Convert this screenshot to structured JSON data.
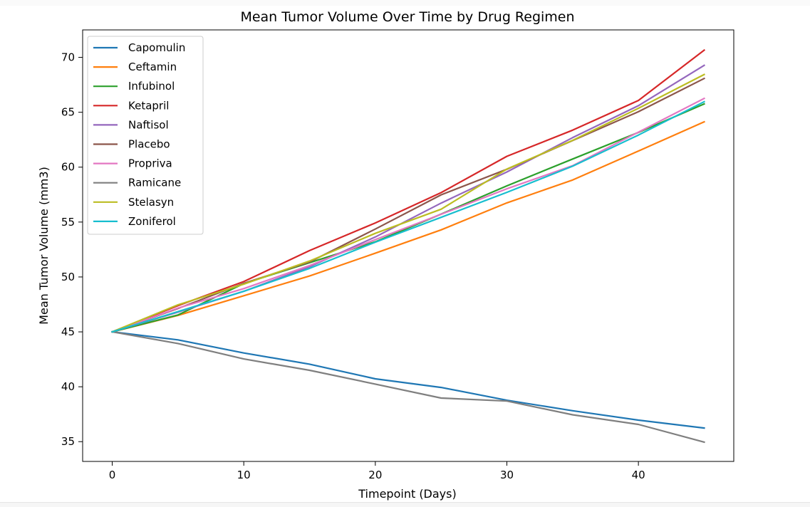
{
  "chart_data": {
    "type": "line",
    "title": "Mean Tumor Volume Over Time by Drug Regimen",
    "xlabel": "Timepoint (Days)",
    "ylabel": "Mean Tumor Volume (mm3)",
    "xlim": [
      -2.25,
      47.25
    ],
    "ylim": [
      33.2,
      72.5
    ],
    "xticks": [
      0,
      10,
      20,
      30,
      40
    ],
    "yticks": [
      35,
      40,
      45,
      50,
      55,
      60,
      65,
      70
    ],
    "grid": false,
    "legend_position": "upper-left",
    "x": [
      0,
      5,
      10,
      15,
      20,
      25,
      30,
      35,
      40,
      45
    ],
    "series": [
      {
        "name": "Capomulin",
        "color": "#1f77b4",
        "values": [
          45.0,
          44.27,
          43.08,
          42.06,
          40.72,
          39.94,
          38.77,
          37.82,
          36.96,
          36.24
        ]
      },
      {
        "name": "Ceftamin",
        "color": "#ff7f0e",
        "values": [
          45.0,
          46.5,
          48.29,
          50.09,
          52.16,
          54.29,
          56.75,
          58.83,
          61.47,
          64.13
        ]
      },
      {
        "name": "Infubinol",
        "color": "#2ca02c",
        "values": [
          45.0,
          46.54,
          49.4,
          51.3,
          53.2,
          55.72,
          58.3,
          60.74,
          63.16,
          65.76
        ]
      },
      {
        "name": "Ketapril",
        "color": "#d62728",
        "values": [
          45.0,
          47.39,
          49.58,
          52.4,
          54.92,
          57.68,
          60.99,
          63.37,
          66.07,
          70.66
        ]
      },
      {
        "name": "Naftisol",
        "color": "#9467bd",
        "values": [
          45.0,
          46.8,
          48.69,
          50.93,
          53.64,
          56.73,
          59.56,
          62.69,
          65.6,
          69.27
        ]
      },
      {
        "name": "Placebo",
        "color": "#8c564b",
        "values": [
          45.0,
          47.13,
          49.42,
          51.36,
          54.36,
          57.48,
          59.81,
          62.42,
          65.05,
          68.08
        ]
      },
      {
        "name": "Propriva",
        "color": "#e377c2",
        "values": [
          45.0,
          47.17,
          48.94,
          51.04,
          53.4,
          55.71,
          58.03,
          60.13,
          63.19,
          66.26
        ]
      },
      {
        "name": "Ramicane",
        "color": "#7f7f7f",
        "values": [
          45.0,
          43.94,
          42.53,
          41.5,
          40.24,
          38.97,
          38.7,
          37.45,
          36.57,
          34.96
        ]
      },
      {
        "name": "Stelasyn",
        "color": "#bcbd22",
        "values": [
          45.0,
          47.47,
          49.34,
          51.45,
          53.97,
          56.17,
          59.83,
          62.44,
          65.36,
          68.44
        ]
      },
      {
        "name": "Zoniferol",
        "color": "#17becf",
        "values": [
          45.0,
          46.85,
          48.69,
          50.78,
          53.17,
          55.43,
          57.71,
          60.09,
          62.92,
          65.96
        ]
      }
    ]
  }
}
